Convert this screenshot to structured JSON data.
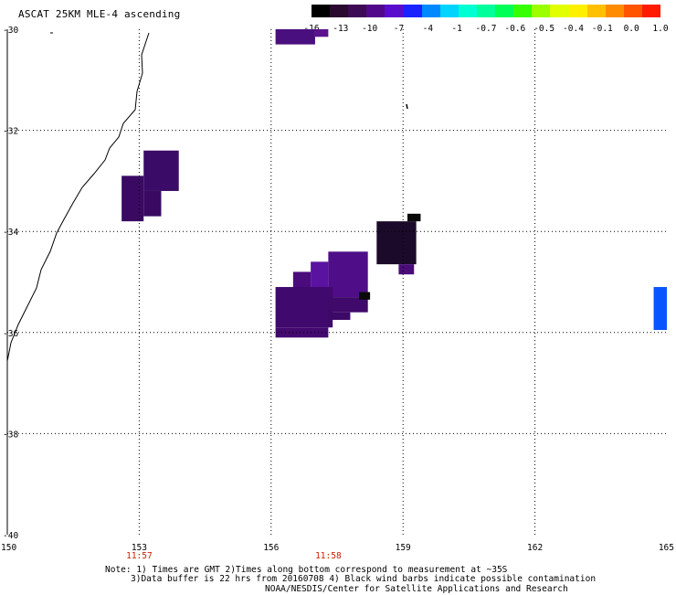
{
  "title": "ASCAT 25KM MLE-4 ascending",
  "colorbar": {
    "labels": [
      "-16",
      "-13",
      "-10",
      "-7",
      "-4",
      "-1",
      "-0.7",
      "-0.6",
      "-0.5",
      "-0.4",
      "-0.1",
      "0.0",
      "1.0"
    ],
    "colors": [
      "#000000",
      "#2a0a2e",
      "#3d0a55",
      "#52088a",
      "#5a0ccc",
      "#1a22ff",
      "#0088ff",
      "#00d4ff",
      "#00ffd2",
      "#00ff9a",
      "#00ff55",
      "#35ff00",
      "#9cff00",
      "#e2ff00",
      "#fff000",
      "#ffc000",
      "#ff8c00",
      "#ff5500",
      "#ff1a00"
    ]
  },
  "map": {
    "lat_labels": [
      "-30",
      "-32",
      "-34",
      "-36",
      "-38",
      "-40"
    ],
    "lon_labels": [
      "150",
      "153",
      "156",
      "159",
      "162",
      "165"
    ],
    "time_labels": [
      {
        "text": "11:57",
        "lon": 153
      },
      {
        "text": "11:58",
        "lon": 157.3
      }
    ],
    "lat_range": [
      -40,
      -30
    ],
    "lon_range": [
      150,
      165
    ],
    "grid": true
  },
  "notes": {
    "line1": "Note: 1) Times are GMT 2)Times along bottom correspond to measurement at ~35S",
    "line2": "3)Data buffer is 22 hrs from 20160708 4) Black wind barbs indicate possible contamination",
    "line3": "NOAA/NESDIS/Center for Satellite Applications and Research"
  },
  "data_cells": [
    {
      "lon": 156.1,
      "lat": -30.0,
      "w": 0.9,
      "h": 0.3,
      "color": "#4a0f7e"
    },
    {
      "lon": 157.0,
      "lat": -30.0,
      "w": 0.3,
      "h": 0.15,
      "color": "#5a128e"
    },
    {
      "lon": 153.1,
      "lat": -32.4,
      "w": 0.8,
      "h": 0.8,
      "color": "#3b0c67"
    },
    {
      "lon": 152.6,
      "lat": -32.9,
      "w": 0.5,
      "h": 0.9,
      "color": "#3a0a63"
    },
    {
      "lon": 153.1,
      "lat": -33.2,
      "w": 0.4,
      "h": 0.5,
      "color": "#3a0a62"
    },
    {
      "lon": 158.4,
      "lat": -33.8,
      "w": 0.9,
      "h": 0.85,
      "color": "#1c0a2a"
    },
    {
      "lon": 159.1,
      "lat": -33.65,
      "w": 0.3,
      "h": 0.15,
      "color": "#0a0a0a"
    },
    {
      "lon": 158.9,
      "lat": -34.65,
      "w": 0.35,
      "h": 0.2,
      "color": "#4a0c78"
    },
    {
      "lon": 157.3,
      "lat": -34.4,
      "w": 0.9,
      "h": 0.9,
      "color": "#4f0e88"
    },
    {
      "lon": 156.9,
      "lat": -34.6,
      "w": 0.4,
      "h": 0.8,
      "color": "#5a12a0"
    },
    {
      "lon": 156.5,
      "lat": -34.8,
      "w": 0.4,
      "h": 0.4,
      "color": "#4a0c7d"
    },
    {
      "lon": 156.1,
      "lat": -35.1,
      "w": 1.3,
      "h": 0.8,
      "color": "#40096e"
    },
    {
      "lon": 157.3,
      "lat": -35.3,
      "w": 0.9,
      "h": 0.3,
      "color": "#3f0a6a"
    },
    {
      "lon": 157.3,
      "lat": -35.6,
      "w": 0.5,
      "h": 0.15,
      "color": "#3c0966"
    },
    {
      "lon": 156.1,
      "lat": -35.9,
      "w": 1.2,
      "h": 0.2,
      "color": "#43096f"
    },
    {
      "lon": 158.0,
      "lat": -35.2,
      "w": 0.25,
      "h": 0.15,
      "color": "#0a0a0a"
    },
    {
      "lon": 164.7,
      "lat": -35.1,
      "w": 0.3,
      "h": 0.85,
      "color": "#0a55ff"
    }
  ]
}
